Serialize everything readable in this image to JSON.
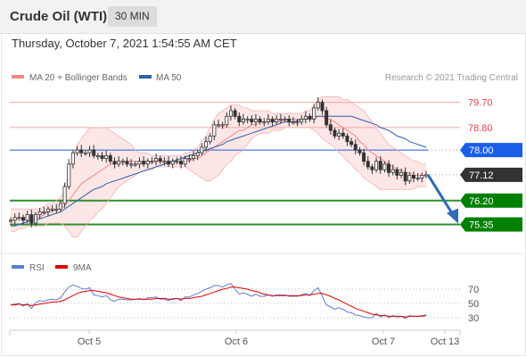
{
  "header": {
    "title": "Crude Oil (WTI)",
    "timeframe": "30 MIN"
  },
  "timestamp": "Thursday, October 7, 2021 1:54:55 AM CET",
  "legend": {
    "ma20_label": "MA 20 + Bollinger Bands",
    "ma50_label": "MA 50",
    "copyright": "Research © 2021 Trading Central"
  },
  "colors": {
    "ma20": "#f28b82",
    "bollinger_fill": "#fcdede",
    "ma50": "#2f5fa8",
    "resistance": "#f4a7a7",
    "pivot": "#1f5bd8",
    "support": "#2f8f2f",
    "support_label_bg": "#008000",
    "pivot_label_bg": "#1a5ee6",
    "last_price_bg": "#333333",
    "candle": "#333333",
    "arrow": "#2f6cb5",
    "rsi": "#5b7fd1",
    "rsi_ma": "#e00000"
  },
  "chart_data": [
    {
      "type": "candlestick",
      "instrument": "Crude Oil (WTI)",
      "timeframe": "30 MIN",
      "x_ticks": [
        "Oct 5",
        "Oct 6",
        "Oct 7",
        "Oct 13"
      ],
      "ylim": [
        74.7,
        80.1
      ],
      "levels": [
        {
          "value": 79.7,
          "label": "79.70",
          "kind": "resistance"
        },
        {
          "value": 78.8,
          "label": "78.80",
          "kind": "resistance"
        },
        {
          "value": 78.0,
          "label": "78.00",
          "kind": "pivot"
        },
        {
          "value": 77.12,
          "label": "77.12",
          "kind": "last"
        },
        {
          "value": 76.2,
          "label": "76.20",
          "kind": "support"
        },
        {
          "value": 75.35,
          "label": "75.35",
          "kind": "support"
        }
      ],
      "close": [
        75.5,
        75.6,
        75.6,
        75.5,
        75.7,
        75.4,
        75.7,
        75.8,
        75.8,
        75.9,
        75.9,
        75.9,
        76.1,
        76.7,
        77.5,
        77.9,
        78.0,
        77.9,
        77.9,
        78.0,
        77.8,
        77.8,
        77.7,
        77.8,
        77.6,
        77.5,
        77.6,
        77.6,
        77.5,
        77.5,
        77.5,
        77.6,
        77.5,
        77.6,
        77.6,
        77.7,
        77.6,
        77.6,
        77.5,
        77.6,
        77.6,
        77.5,
        77.7,
        77.7,
        77.8,
        77.9,
        78.1,
        78.3,
        78.5,
        78.9,
        78.9,
        78.9,
        79.2,
        79.4,
        79.2,
        79.0,
        79.1,
        79.1,
        79.0,
        79.1,
        79.0,
        79.0,
        79.1,
        79.0,
        79.1,
        79.1,
        79.1,
        79.0,
        79.0,
        79.0,
        79.1,
        79.2,
        79.1,
        79.5,
        79.7,
        79.4,
        78.9,
        78.7,
        78.5,
        78.6,
        78.5,
        78.3,
        78.2,
        78.0,
        77.9,
        77.6,
        77.4,
        77.3,
        77.6,
        77.3,
        77.5,
        77.2,
        77.3,
        77.1,
        77.2,
        76.9,
        77.1,
        77.0,
        77.0,
        77.1,
        77.12
      ],
      "ma20": [
        75.5,
        75.5,
        75.6,
        75.6,
        75.6,
        75.6,
        75.6,
        75.6,
        75.7,
        75.8,
        75.8,
        75.9,
        75.9,
        76.0,
        76.2,
        76.4,
        76.6,
        76.8,
        76.9,
        77.0,
        77.1,
        77.2,
        77.3,
        77.4,
        77.5,
        77.5,
        77.6,
        77.6,
        77.6,
        77.6,
        77.6,
        77.6,
        77.6,
        77.6,
        77.6,
        77.6,
        77.6,
        77.6,
        77.6,
        77.6,
        77.6,
        77.6,
        77.6,
        77.6,
        77.7,
        77.7,
        77.8,
        77.9,
        78.0,
        78.1,
        78.2,
        78.3,
        78.4,
        78.5,
        78.6,
        78.7,
        78.7,
        78.8,
        78.9,
        78.9,
        79.0,
        79.0,
        79.0,
        79.0,
        79.0,
        79.0,
        79.1,
        79.1,
        79.1,
        79.1,
        79.1,
        79.1,
        79.1,
        79.1,
        79.2,
        79.2,
        79.1,
        79.1,
        79.0,
        78.9,
        78.8,
        78.7,
        78.6,
        78.5,
        78.3,
        78.2,
        78.0,
        77.9,
        77.8,
        77.7,
        77.6,
        77.5,
        77.4,
        77.3,
        77.3,
        77.2,
        77.2,
        77.1,
        77.1,
        77.1,
        77.1
      ],
      "ma50": [
        75.3,
        75.3,
        75.35,
        75.4,
        75.45,
        75.5,
        75.5,
        75.55,
        75.6,
        75.65,
        75.7,
        75.75,
        75.8,
        75.9,
        76.0,
        76.1,
        76.2,
        76.3,
        76.4,
        76.5,
        76.6,
        76.65,
        76.7,
        76.8,
        76.85,
        76.9,
        76.95,
        77.0,
        77.05,
        77.1,
        77.15,
        77.2,
        77.25,
        77.3,
        77.35,
        77.4,
        77.45,
        77.5,
        77.55,
        77.6,
        77.65,
        77.7,
        77.75,
        77.8,
        77.85,
        77.9,
        77.95,
        78.0,
        78.05,
        78.1,
        78.15,
        78.2,
        78.3,
        78.35,
        78.4,
        78.45,
        78.5,
        78.55,
        78.6,
        78.65,
        78.7,
        78.75,
        78.8,
        78.85,
        78.9,
        78.95,
        79.0,
        79.0,
        79.0,
        79.05,
        79.1,
        79.1,
        79.15,
        79.2,
        79.2,
        79.2,
        79.2,
        79.2,
        79.2,
        79.2,
        79.2,
        79.2,
        79.2,
        79.15,
        79.1,
        79.05,
        79.0,
        78.95,
        78.9,
        78.8,
        78.75,
        78.7,
        78.6,
        78.5,
        78.45,
        78.4,
        78.3,
        78.25,
        78.2,
        78.15,
        78.1
      ],
      "bollinger_upper": [
        75.9,
        75.9,
        75.9,
        75.9,
        75.9,
        75.9,
        75.9,
        75.9,
        76.0,
        76.1,
        76.1,
        76.2,
        76.3,
        76.6,
        77.2,
        77.8,
        78.2,
        78.4,
        78.6,
        78.8,
        78.8,
        78.8,
        78.8,
        78.8,
        78.7,
        78.6,
        78.5,
        78.4,
        78.3,
        78.2,
        78.0,
        77.9,
        77.9,
        77.9,
        77.8,
        77.8,
        77.8,
        77.8,
        77.8,
        77.8,
        77.8,
        77.8,
        77.9,
        77.9,
        78.0,
        78.1,
        78.3,
        78.5,
        78.8,
        79.1,
        79.3,
        79.4,
        79.5,
        79.6,
        79.6,
        79.6,
        79.5,
        79.5,
        79.4,
        79.4,
        79.4,
        79.4,
        79.4,
        79.3,
        79.3,
        79.3,
        79.3,
        79.3,
        79.3,
        79.3,
        79.3,
        79.4,
        79.4,
        79.6,
        79.8,
        79.9,
        79.9,
        79.9,
        79.9,
        79.9,
        79.8,
        79.8,
        79.7,
        79.6,
        79.5,
        79.4,
        79.2,
        79.0,
        78.8,
        78.6,
        78.4,
        78.2,
        78.1,
        78.0,
        77.9,
        77.8,
        77.7,
        77.6,
        77.6,
        77.5,
        77.5
      ],
      "bollinger_lower": [
        75.1,
        75.1,
        75.2,
        75.2,
        75.3,
        75.3,
        75.3,
        75.3,
        75.3,
        75.4,
        75.4,
        75.4,
        75.4,
        75.3,
        75.1,
        74.9,
        74.9,
        75.1,
        75.3,
        75.5,
        75.6,
        75.8,
        75.9,
        76.1,
        76.3,
        76.5,
        76.7,
        76.8,
        76.9,
        77.0,
        77.1,
        77.2,
        77.3,
        77.3,
        77.3,
        77.4,
        77.4,
        77.4,
        77.4,
        77.4,
        77.4,
        77.4,
        77.4,
        77.3,
        77.2,
        77.1,
        77.0,
        76.9,
        76.9,
        77.0,
        77.1,
        77.3,
        77.5,
        77.6,
        77.8,
        77.9,
        78.0,
        78.2,
        78.4,
        78.5,
        78.6,
        78.6,
        78.6,
        78.7,
        78.7,
        78.7,
        78.8,
        78.8,
        78.8,
        78.8,
        78.8,
        78.8,
        78.8,
        78.7,
        78.6,
        78.4,
        78.3,
        78.2,
        78.1,
        77.9,
        77.8,
        77.6,
        77.5,
        77.3,
        77.2,
        77.0,
        76.9,
        76.8,
        76.7,
        76.6,
        76.6,
        76.6,
        76.6,
        76.6,
        76.6,
        76.6,
        76.6,
        76.6,
        76.7,
        76.7,
        76.7
      ],
      "forecast": {
        "from": 77.12,
        "to": 75.35
      }
    },
    {
      "type": "line",
      "title": "RSI",
      "series": [
        {
          "name": "RSI",
          "values": [
            48,
            49,
            50,
            46,
            50,
            43,
            51,
            54,
            53,
            55,
            56,
            55,
            58,
            66,
            73,
            76,
            74,
            71,
            70,
            72,
            62,
            61,
            59,
            61,
            55,
            53,
            56,
            56,
            55,
            55,
            56,
            57,
            55,
            58,
            58,
            59,
            56,
            56,
            54,
            57,
            57,
            54,
            59,
            59,
            62,
            64,
            67,
            70,
            72,
            75,
            75,
            73,
            76,
            78,
            70,
            63,
            65,
            63,
            60,
            63,
            60,
            60,
            62,
            60,
            62,
            62,
            62,
            60,
            60,
            60,
            62,
            64,
            61,
            68,
            72,
            60,
            48,
            45,
            42,
            44,
            42,
            38,
            37,
            34,
            33,
            31,
            30,
            30,
            36,
            31,
            34,
            30,
            33,
            31,
            32,
            29,
            33,
            32,
            32,
            33,
            34
          ]
        },
        {
          "name": "9MA",
          "values": [
            48,
            48,
            49,
            48,
            48,
            47,
            48,
            49,
            50,
            51,
            52,
            52,
            53,
            55,
            58,
            61,
            64,
            66,
            67,
            68,
            68,
            67,
            66,
            65,
            63,
            61,
            59,
            58,
            57,
            56,
            56,
            56,
            56,
            56,
            56,
            57,
            57,
            57,
            56,
            56,
            57,
            56,
            57,
            57,
            58,
            59,
            60,
            62,
            64,
            66,
            68,
            70,
            71,
            73,
            73,
            72,
            71,
            70,
            68,
            67,
            65,
            63,
            62,
            61,
            61,
            61,
            61,
            61,
            61,
            61,
            61,
            62,
            62,
            63,
            64,
            64,
            62,
            60,
            57,
            55,
            52,
            49,
            46,
            43,
            41,
            39,
            37,
            35,
            34,
            33,
            33,
            32,
            32,
            32,
            32,
            31,
            32,
            32,
            32,
            32,
            33
          ]
        }
      ],
      "ylim": [
        15,
        85
      ],
      "y_ticks": [
        {
          "value": 70,
          "label": "70"
        },
        {
          "value": 50,
          "label": "50"
        },
        {
          "value": 30,
          "label": "30"
        }
      ]
    }
  ]
}
